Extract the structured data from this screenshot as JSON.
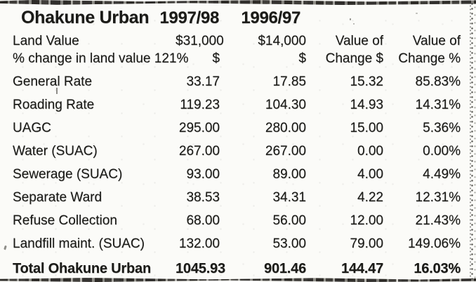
{
  "document": {
    "title": "Ohakune Urban",
    "col_headers": {
      "year_current": "1997/98",
      "year_previous": "1996/97"
    },
    "land_value_row": {
      "label": "Land Value",
      "current": "$31,000",
      "previous": "$14,000",
      "col4": "Value of",
      "col5": "Value of"
    },
    "land_change_row": {
      "label": "% change in land value 121%",
      "current": "$",
      "previous": "$",
      "col4": "Change $",
      "col5": "Change %"
    },
    "rate_rows": [
      {
        "label": "General Rate",
        "current": "33.17",
        "previous": "17.85",
        "change_value": "15.32",
        "change_pct": "85.83%"
      },
      {
        "label": "Roading Rate",
        "current": "119.23",
        "previous": "104.30",
        "change_value": "14.93",
        "change_pct": "14.31%"
      },
      {
        "label": "UAGC",
        "current": "295.00",
        "previous": "280.00",
        "change_value": "15.00",
        "change_pct": "5.36%"
      },
      {
        "label": "Water (SUAC)",
        "current": "267.00",
        "previous": "267.00",
        "change_value": "0.00",
        "change_pct": "0.00%"
      },
      {
        "label": "Sewerage (SUAC)",
        "current": "93.00",
        "previous": "89.00",
        "change_value": "4.00",
        "change_pct": "4.49%"
      },
      {
        "label": "Separate Ward",
        "current": "38.53",
        "previous": "34.31",
        "change_value": "4.22",
        "change_pct": "12.31%"
      },
      {
        "label": "Refuse Collection",
        "current": "68.00",
        "previous": "56.00",
        "change_value": "12.00",
        "change_pct": "21.43%"
      },
      {
        "label": "Landfill maint. (SUAC)",
        "current": "132.00",
        "previous": "53.00",
        "change_value": "79.00",
        "change_pct": "149.06%"
      }
    ],
    "total_row": {
      "label": "Total Ohakune Urban",
      "current": "1045.93",
      "previous": "901.46",
      "change_value": "144.47",
      "change_pct": "16.03%"
    },
    "colors": {
      "ink": "#1b1b18",
      "paper": "#fbfbf8"
    }
  }
}
